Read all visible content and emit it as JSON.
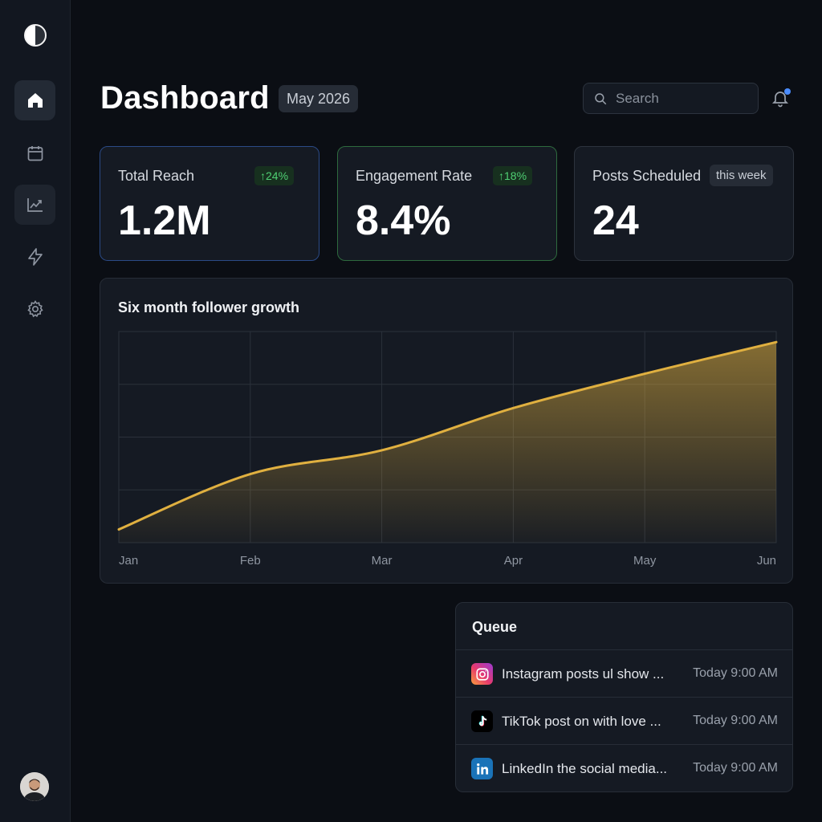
{
  "sidebar": {
    "items": [
      {
        "id": "home",
        "icon": "home-icon"
      },
      {
        "id": "calendar",
        "icon": "calendar-icon"
      },
      {
        "id": "analytics",
        "icon": "chart-line-icon"
      },
      {
        "id": "automations",
        "icon": "lightning-icon"
      },
      {
        "id": "settings",
        "icon": "gear-icon"
      }
    ],
    "active": "home"
  },
  "header": {
    "title": "Dashboard",
    "date_badge": "May 2026",
    "search_placeholder": "Search"
  },
  "stats": [
    {
      "label": "Total Reach",
      "value": "1.2M",
      "delta": "↑24%"
    },
    {
      "label": "Engagement Rate",
      "value": "8.4%",
      "delta": "↑18%"
    },
    {
      "label": "Posts Scheduled",
      "value": "24",
      "badge": "this week"
    }
  ],
  "chart": {
    "title": "Six month follower growth"
  },
  "chart_data": {
    "type": "area",
    "title": "Six month follower growth",
    "categories": [
      "Jan",
      "Feb",
      "Mar",
      "Apr",
      "May",
      "Jun"
    ],
    "series": [
      {
        "values": [
          0.25,
          1.3,
          1.75,
          2.55,
          3.2,
          3.8
        ]
      }
    ],
    "ylim": [
      0,
      4
    ],
    "grid": true,
    "color": "#e0b040"
  },
  "queue": {
    "title": "Queue",
    "items": [
      {
        "platform": "instagram",
        "icon": "instagram-icon",
        "text": "Instagram posts ul show ...",
        "time": "Today 9:00 AM"
      },
      {
        "platform": "tiktok",
        "icon": "tiktok-icon",
        "text": "TikTok post on with love ...",
        "time": "Today 9:00 AM"
      },
      {
        "platform": "linkedin",
        "icon": "linkedin-icon",
        "text": "LinkedIn the social media...",
        "time": "Today 9:00 AM"
      }
    ]
  }
}
